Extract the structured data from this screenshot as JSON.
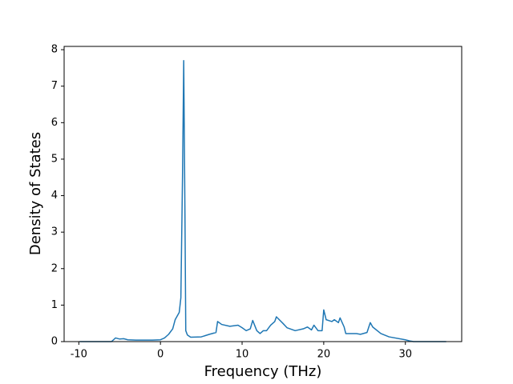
{
  "chart_data": {
    "type": "line",
    "xlabel": "Frequency (THz)",
    "ylabel": "Density of States",
    "series": [
      {
        "color": "#1f77b4",
        "x": [
          -9.9,
          -6,
          -5.5,
          -5,
          -4.5,
          -4,
          -3,
          -1,
          0,
          0.5,
          1,
          1.5,
          1.8,
          2.3,
          2.5,
          2.7,
          2.85,
          3.0,
          3.1,
          3.3,
          3.7,
          5,
          6,
          6.8,
          7.0,
          7.5,
          8.5,
          9.5,
          10,
          10.5,
          11,
          11.3,
          11.8,
          12.2,
          12.6,
          13,
          13.5,
          14,
          14.2,
          15,
          15.5,
          16.5,
          17.5,
          18,
          18.5,
          18.8,
          19.3,
          19.8,
          20,
          20.3,
          21,
          21.3,
          21.8,
          22,
          22.5,
          22.7,
          24,
          24.5,
          25.3,
          25.7,
          26,
          27,
          28,
          30,
          30.5,
          31,
          35
        ],
        "values": [
          0,
          0,
          0.1,
          0.07,
          0.08,
          0.05,
          0.04,
          0.04,
          0.05,
          0.1,
          0.2,
          0.35,
          0.6,
          0.8,
          1.2,
          4.5,
          7.7,
          3.5,
          0.3,
          0.18,
          0.12,
          0.13,
          0.2,
          0.25,
          0.55,
          0.47,
          0.42,
          0.45,
          0.38,
          0.3,
          0.35,
          0.58,
          0.3,
          0.22,
          0.3,
          0.3,
          0.45,
          0.55,
          0.68,
          0.5,
          0.38,
          0.3,
          0.35,
          0.4,
          0.32,
          0.45,
          0.3,
          0.3,
          0.87,
          0.6,
          0.55,
          0.6,
          0.52,
          0.65,
          0.4,
          0.22,
          0.22,
          0.2,
          0.25,
          0.52,
          0.4,
          0.22,
          0.13,
          0.05,
          0.02,
          0,
          0
        ]
      }
    ],
    "xlim": [
      -11.8,
      36.9
    ],
    "xticks": [
      -10,
      0,
      10,
      20,
      30
    ],
    "ylim": [
      0,
      8.09
    ],
    "yticks": [
      0,
      1,
      2,
      3,
      4,
      5,
      6,
      7,
      8
    ]
  }
}
